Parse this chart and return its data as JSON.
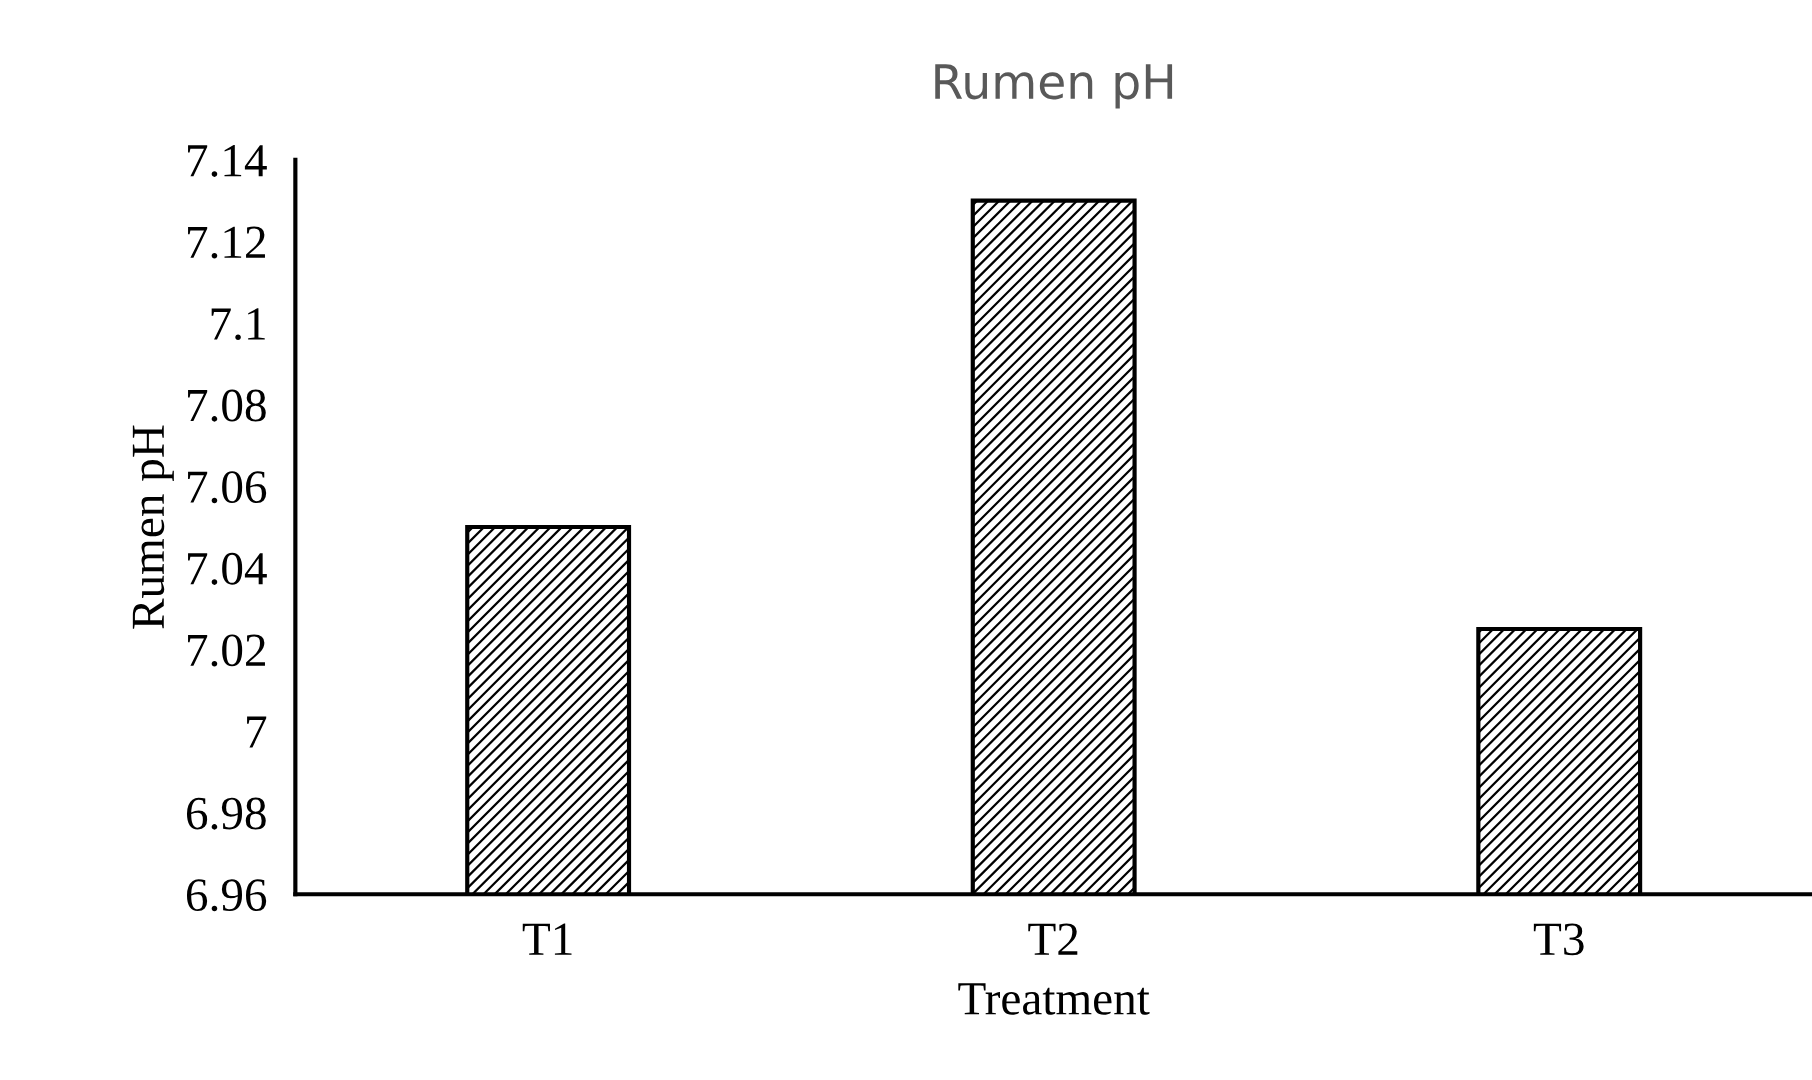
{
  "chart_data": {
    "type": "bar",
    "title": "Rumen pH",
    "xlabel": "Treatment",
    "ylabel": "Rumen pH",
    "categories": [
      "T1",
      "T2",
      "T3"
    ],
    "values": [
      7.05,
      7.13,
      7.025
    ],
    "color": "#000000",
    "ylim": [
      6.96,
      7.14
    ],
    "yticks": [
      {
        "value": 6.96,
        "label": "6.96"
      },
      {
        "value": 6.98,
        "label": "6.98"
      },
      {
        "value": 7.0,
        "label": "7"
      },
      {
        "value": 7.02,
        "label": "7.02"
      },
      {
        "value": 7.04,
        "label": "7.04"
      },
      {
        "value": 7.06,
        "label": "7.06"
      },
      {
        "value": 7.08,
        "label": "7.08"
      },
      {
        "value": 7.1,
        "label": "7.1"
      },
      {
        "value": 7.12,
        "label": "7.12"
      },
      {
        "value": 7.14,
        "label": "7.14"
      }
    ],
    "grid": false
  }
}
